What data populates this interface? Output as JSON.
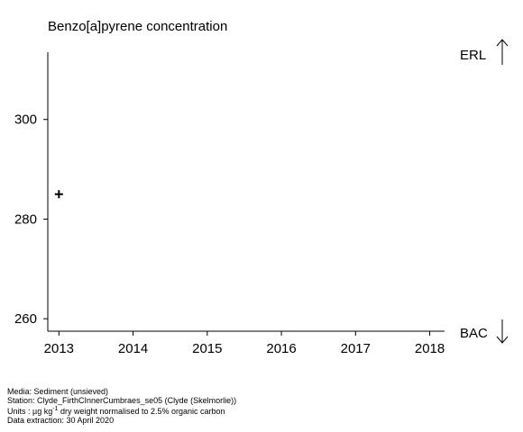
{
  "chart_data": {
    "type": "scatter",
    "title": "Benzo[a]pyrene concentration",
    "xlabel": "",
    "ylabel": "",
    "xlim": [
      2012.85,
      2018.2
    ],
    "ylim": [
      257.5,
      313.5
    ],
    "x_ticks": [
      2013,
      2014,
      2015,
      2016,
      2017,
      2018
    ],
    "y_ticks": [
      260,
      280,
      300
    ],
    "series": [
      {
        "marker": "+",
        "color": "#000000",
        "points": [
          {
            "x": 2013,
            "y": 285
          }
        ]
      }
    ],
    "thresholds": [
      {
        "label": "ERL",
        "direction": "up"
      },
      {
        "label": "BAC",
        "direction": "down"
      }
    ],
    "grid": false,
    "legend": "none"
  },
  "footer": {
    "media": "Media: Sediment (unsieved)",
    "station": "Station: Clyde_FirthCInnerCumbraes_se05 (Clyde (Skelmorlie))",
    "units_prefix": "Units :  µg kg",
    "units_sup": "-1",
    "units_suffix": " dry weight normalised to 2.5% organic carbon",
    "extraction": "Data extraction: 30 April 2020"
  }
}
